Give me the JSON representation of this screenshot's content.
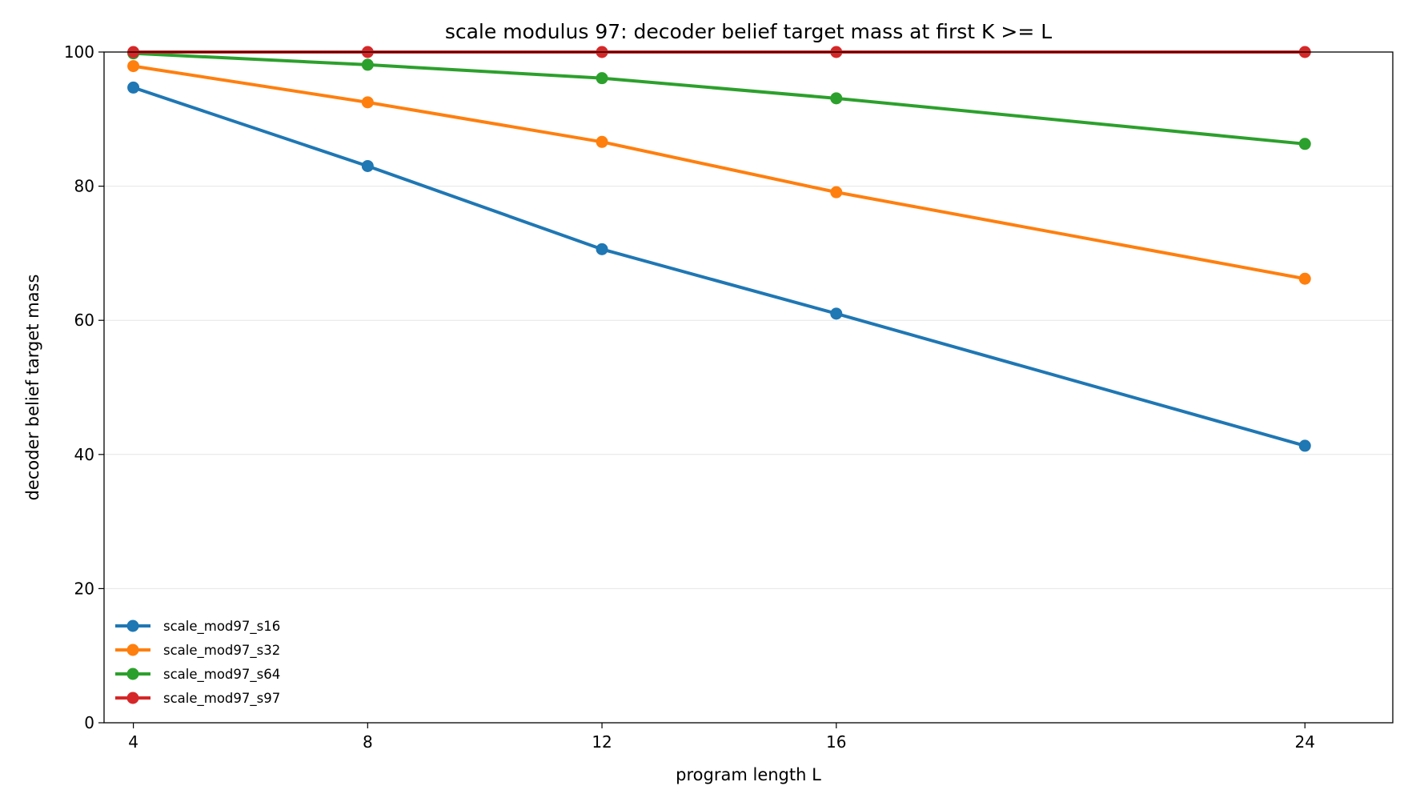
{
  "chart_data": {
    "type": "line",
    "title": "scale modulus 97: decoder belief target mass at first K >= L",
    "xlabel": "program length L",
    "ylabel": "decoder belief target mass",
    "x": [
      4,
      8,
      12,
      16,
      24
    ],
    "x_ticks": [
      4,
      8,
      12,
      16,
      24
    ],
    "x_tick_labels": [
      "4",
      "8",
      "12",
      "16",
      "24"
    ],
    "ylim": [
      0,
      100
    ],
    "y_ticks": [
      0,
      20,
      40,
      60,
      80,
      100
    ],
    "y_tick_labels": [
      "0",
      "20",
      "40",
      "60",
      "80",
      "100"
    ],
    "grid": "horizontal",
    "legend_position": "lower-left",
    "series": [
      {
        "name": "scale_mod97_s16",
        "color": "#1f77b4",
        "values": [
          94.7,
          83.0,
          70.6,
          61.0,
          41.3
        ]
      },
      {
        "name": "scale_mod97_s32",
        "color": "#ff7f0e",
        "values": [
          97.9,
          92.5,
          86.6,
          79.1,
          66.2
        ]
      },
      {
        "name": "scale_mod97_s64",
        "color": "#2ca02c",
        "values": [
          99.8,
          98.1,
          96.1,
          93.1,
          86.3
        ]
      },
      {
        "name": "scale_mod97_s97",
        "color": "#d62728",
        "values": [
          100.0,
          100.0,
          100.0,
          100.0,
          100.0
        ]
      }
    ]
  }
}
